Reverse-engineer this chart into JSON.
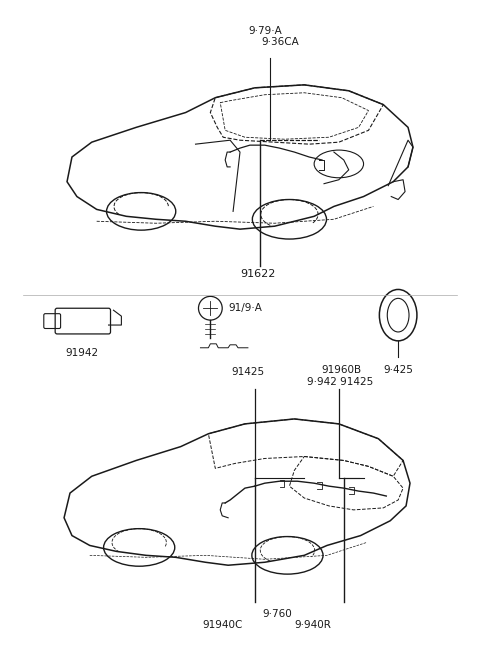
{
  "bg_color": "#ffffff",
  "line_color": "#1a1a1a",
  "fig_width": 4.8,
  "fig_height": 6.57,
  "dpi": 100,
  "top_label1": "9·79·A",
  "top_label2": "9·36CA",
  "mid_label1": "91622",
  "part1_label": "91942",
  "part2_label": "91/9·A",
  "part3_label": "9·425",
  "bot_label1": "91425",
  "bot_label2": "91960B",
  "bot_label3": "9·942 91425",
  "bot_label4": "91940C",
  "bot_label5": "9·760",
  "bot_label6": "9·940R"
}
